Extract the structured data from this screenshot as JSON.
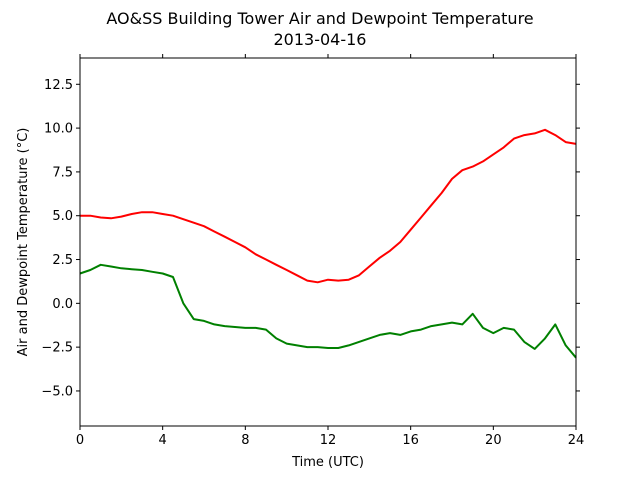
{
  "chart_data": {
    "type": "line",
    "title": "AO&SS Building Tower Air and Dewpoint Temperature",
    "subtitle": "2013-04-16",
    "xlabel": "Time (UTC)",
    "ylabel": "Air and Dewpoint Temperature (°C)",
    "xlim": [
      0,
      24
    ],
    "ylim": [
      -7,
      14
    ],
    "xticks": [
      0,
      4,
      8,
      12,
      16,
      20,
      24
    ],
    "xtick_labels": [
      "0",
      "4",
      "8",
      "12",
      "16",
      "20",
      "24"
    ],
    "yticks": [
      -5.0,
      -2.5,
      0.0,
      2.5,
      5.0,
      7.5,
      10.0,
      12.5
    ],
    "ytick_labels": [
      "−5.0",
      "−2.5",
      "0.0",
      "2.5",
      "5.0",
      "7.5",
      "10.0",
      "12.5"
    ],
    "grid": false,
    "legend": "none",
    "series": [
      {
        "color": "#ff0000",
        "x": [
          0,
          0.5,
          1,
          1.5,
          2,
          2.5,
          3,
          3.5,
          4,
          4.5,
          5,
          5.5,
          6,
          6.5,
          7,
          7.5,
          8,
          8.5,
          9,
          9.5,
          10,
          10.5,
          11,
          11.5,
          12,
          12.5,
          13,
          13.5,
          14,
          14.5,
          15,
          15.5,
          16,
          16.5,
          17,
          17.5,
          18,
          18.5,
          19,
          19.5,
          20,
          20.5,
          21,
          21.5,
          22,
          22.5,
          23,
          23.5,
          24
        ],
        "y": [
          5.0,
          5.0,
          4.9,
          4.85,
          4.95,
          5.1,
          5.2,
          5.2,
          5.1,
          5.0,
          4.8,
          4.6,
          4.4,
          4.1,
          3.8,
          3.5,
          3.2,
          2.8,
          2.5,
          2.2,
          1.9,
          1.6,
          1.3,
          1.2,
          1.35,
          1.3,
          1.35,
          1.6,
          2.1,
          2.6,
          3.0,
          3.5,
          4.2,
          4.9,
          5.6,
          6.3,
          7.1,
          7.6,
          7.8,
          8.1,
          8.5,
          8.9,
          9.4,
          9.6,
          9.7,
          9.9,
          9.6,
          9.2,
          9.1
        ]
      },
      {
        "color": "#008000",
        "x": [
          0,
          0.5,
          1,
          1.5,
          2,
          2.5,
          3,
          3.5,
          4,
          4.5,
          5,
          5.5,
          6,
          6.5,
          7,
          7.5,
          8,
          8.5,
          9,
          9.5,
          10,
          10.5,
          11,
          11.5,
          12,
          12.5,
          13,
          13.5,
          14,
          14.5,
          15,
          15.5,
          16,
          16.5,
          17,
          17.5,
          18,
          18.5,
          19,
          19.5,
          20,
          20.5,
          21,
          21.5,
          22,
          22.5,
          23,
          23.5,
          24
        ],
        "y": [
          1.7,
          1.9,
          2.2,
          2.1,
          2.0,
          1.95,
          1.9,
          1.8,
          1.7,
          1.5,
          0.0,
          -0.9,
          -1.0,
          -1.2,
          -1.3,
          -1.35,
          -1.4,
          -1.4,
          -1.5,
          -2.0,
          -2.3,
          -2.4,
          -2.5,
          -2.5,
          -2.55,
          -2.55,
          -2.4,
          -2.2,
          -2.0,
          -1.8,
          -1.7,
          -1.8,
          -1.6,
          -1.5,
          -1.3,
          -1.2,
          -1.1,
          -1.2,
          -0.6,
          -1.4,
          -1.7,
          -1.4,
          -1.5,
          -2.2,
          -2.6,
          -2.0,
          -1.2,
          -2.4,
          -3.1
        ]
      }
    ]
  }
}
